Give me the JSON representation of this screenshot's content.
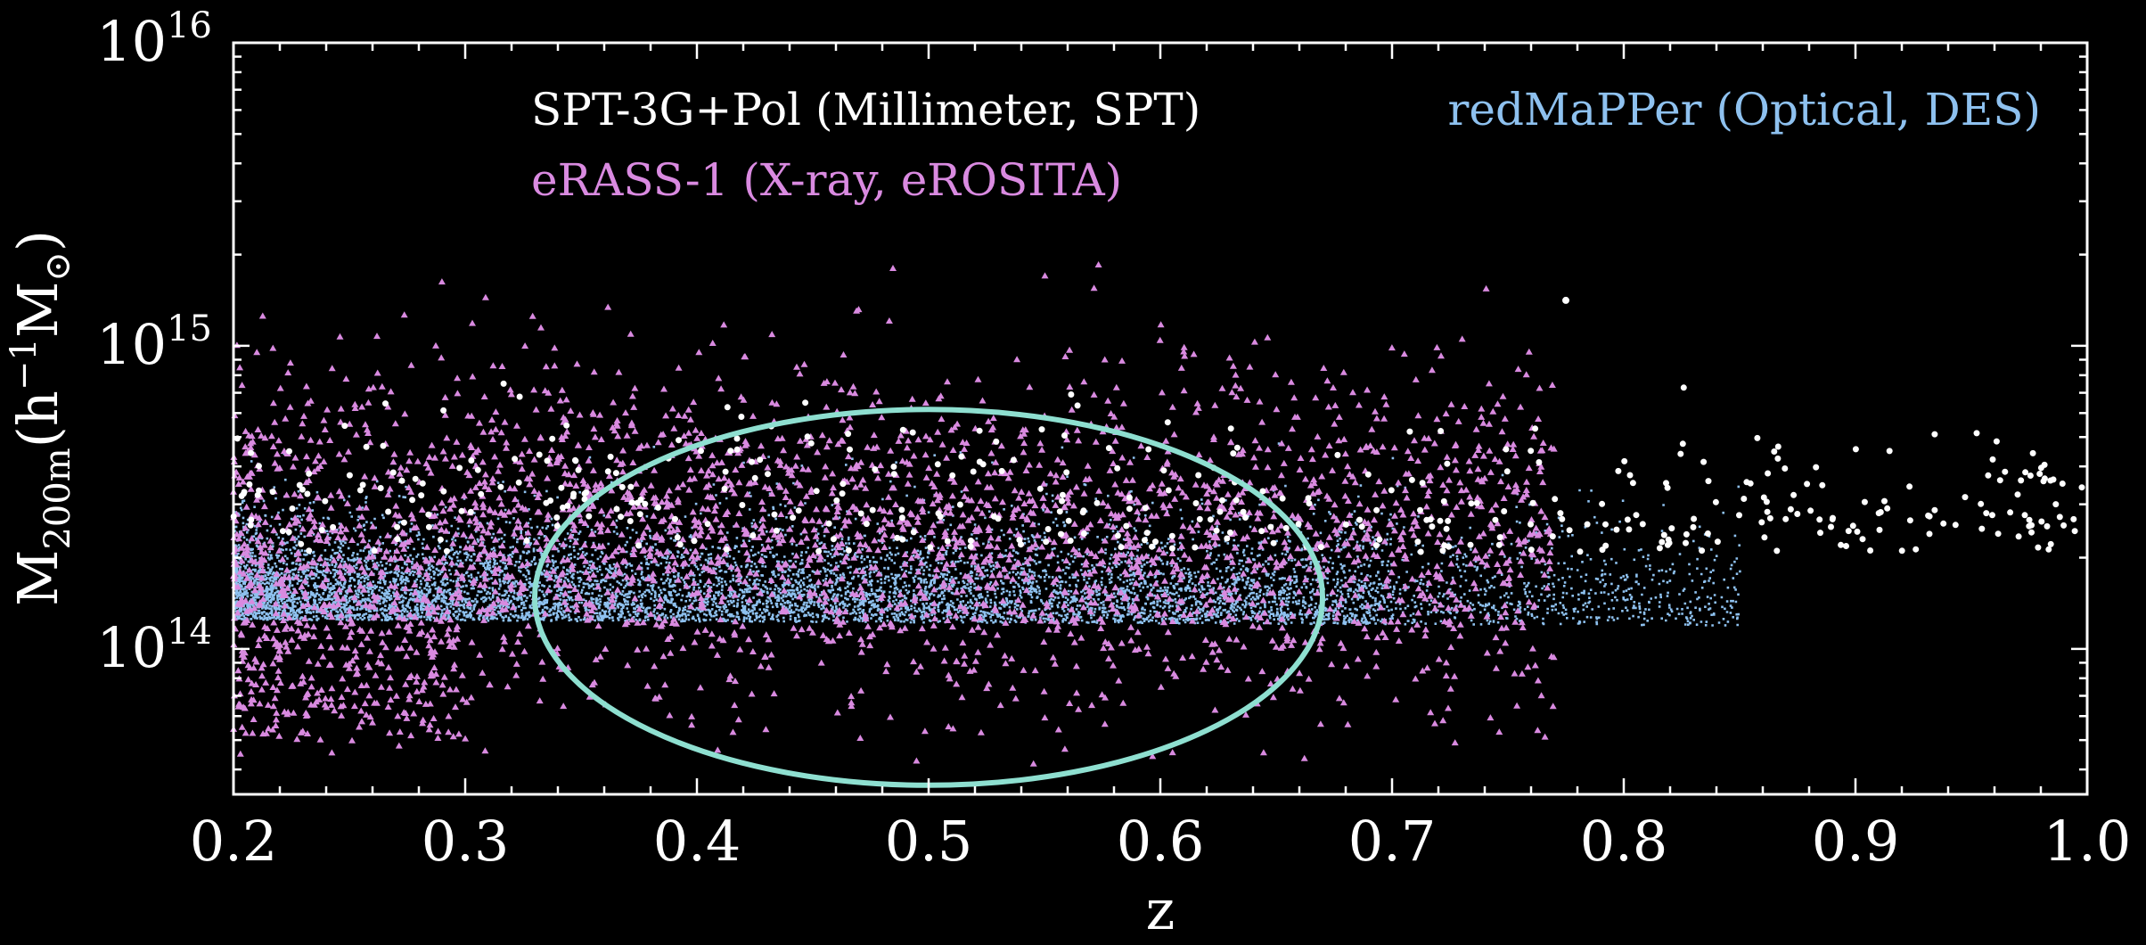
{
  "chart_data": {
    "type": "scatter",
    "title": "",
    "xlabel": "z",
    "ylabel": {
      "base": "M",
      "subscript": "200m",
      "paren_open": "(h",
      "sup": "−1",
      "unit": "M",
      "unit_sub": "⊙",
      "paren_close": ")"
    },
    "xlim": [
      0.2,
      1.0
    ],
    "ylim_log10": [
      13.52,
      16.0
    ],
    "yscale": "log",
    "x_ticks": [
      "0.2",
      "0.3",
      "0.4",
      "0.5",
      "0.6",
      "0.7",
      "0.8",
      "0.9",
      "1.0"
    ],
    "x_tick_values": [
      0.2,
      0.3,
      0.4,
      0.5,
      0.6,
      0.7,
      0.8,
      0.9,
      1.0
    ],
    "y_ticks": [
      {
        "base": "10",
        "exp": "14",
        "log": 14
      },
      {
        "base": "10",
        "exp": "15",
        "log": 15
      },
      {
        "base": "10",
        "exp": "16",
        "log": 16
      }
    ],
    "legend_placement": "top",
    "series": [
      {
        "name": "SPT-3G+Pol (Millimeter, SPT)",
        "color": "#ffffff",
        "marker": "circle",
        "description": "SZ-selected clusters, z 0.2-1.0, mass ~2e14-6e14",
        "z_range": [
          0.2,
          1.0
        ],
        "log_mass_range": [
          14.3,
          14.8
        ]
      },
      {
        "name": "eRASS-1 (X-ray, eROSITA)",
        "color": "#d98ae0",
        "marker": "triangle",
        "description": "X-ray selected clusters, z 0.2-0.75, mass ~5e13-2e15",
        "z_range": [
          0.2,
          0.75
        ],
        "log_mass_range": [
          13.65,
          15.3
        ]
      },
      {
        "name": "redMaPPer (Optical, DES)",
        "color": "#8ec1ef",
        "marker": "point",
        "description": "Optically selected clusters, dense band z 0.2-0.7, mass ~1.2e14-3e14",
        "z_range": [
          0.2,
          0.85
        ],
        "log_mass_range": [
          14.05,
          14.6
        ]
      }
    ],
    "annotations": [
      {
        "type": "ellipse",
        "color": "#8edfd0",
        "center_z": 0.5,
        "z_halfwidth": 0.17,
        "center_log_mass": 14.17,
        "log_mass_halfheight": 0.62
      }
    ]
  }
}
